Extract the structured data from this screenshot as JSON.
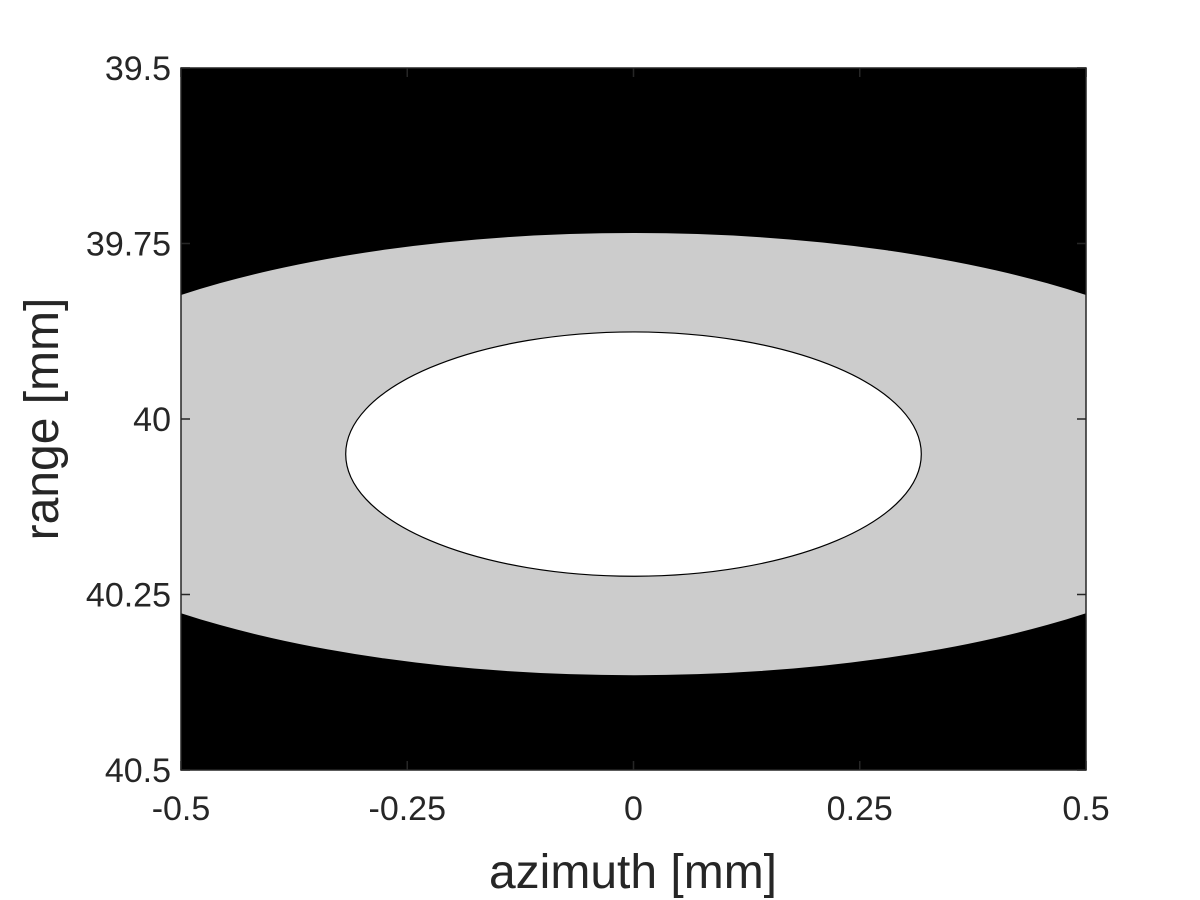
{
  "chart_data": {
    "type": "heatmap",
    "title": "",
    "xlabel": "azimuth [mm]",
    "ylabel": "range [mm]",
    "xlim": [
      -0.5,
      0.5
    ],
    "ylim": [
      39.5,
      40.5
    ],
    "y_reversed": true,
    "grid": false,
    "x_ticks": [
      {
        "value": -0.5,
        "label": "-0.5"
      },
      {
        "value": -0.25,
        "label": "-0.25"
      },
      {
        "value": 0,
        "label": "0"
      },
      {
        "value": 0.25,
        "label": "0.25"
      },
      {
        "value": 0.5,
        "label": "0.5"
      }
    ],
    "y_ticks": [
      {
        "value": 39.5,
        "label": "39.5"
      },
      {
        "value": 39.75,
        "label": "39.75"
      },
      {
        "value": 40,
        "label": "40"
      },
      {
        "value": 40.25,
        "label": "40.25"
      },
      {
        "value": 40.5,
        "label": "40.5"
      }
    ],
    "background_color": "#000000",
    "regions": [
      {
        "shape": "ellipse",
        "center_x": 0,
        "center_y": 40.05,
        "radius_x": 0.72,
        "radius_y": 0.315,
        "color": "#cccccc"
      },
      {
        "shape": "ellipse",
        "center_x": 0,
        "center_y": 40.05,
        "radius_x": 0.318,
        "radius_y": 0.174,
        "color": "#ffffff",
        "outline": "#000000"
      }
    ]
  }
}
